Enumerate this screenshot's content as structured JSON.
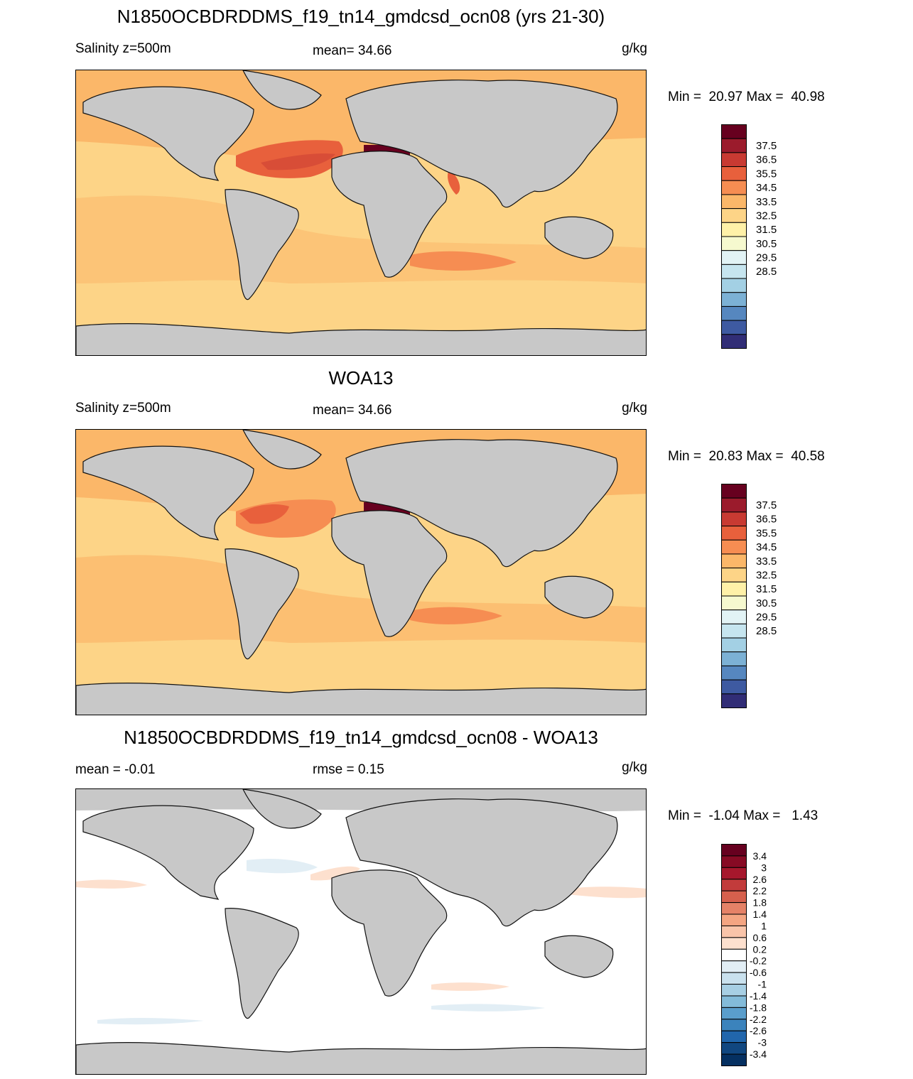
{
  "chart_data": [
    {
      "type": "heatmap",
      "title": "N1850OCBDRDDMS_f19_tn14_gmdcsd_ocn08 (yrs 21-30)",
      "variable_label": "Salinity z=500m",
      "mean_label": "mean=  34.66",
      "units": "g/kg",
      "minmax_label": "Min =  20.97 Max =  40.98",
      "colorbar": {
        "labels": [
          "37.5",
          "36.5",
          "35.5",
          "34.5",
          "33.5",
          "32.5",
          "31.5",
          "30.5",
          "29.5",
          "28.5"
        ],
        "colors": [
          "#67001f",
          "#9b1b2c",
          "#c83a32",
          "#e8603c",
          "#f68d52",
          "#fbb769",
          "#fdd487",
          "#fff1a8",
          "#f6f9cf",
          "#e2f3f5",
          "#c6e5ef",
          "#a3d0e4",
          "#7cb1d5",
          "#5687bf",
          "#3e5aa1",
          "#312d76"
        ]
      }
    },
    {
      "type": "heatmap",
      "title": "WOA13",
      "variable_label": "Salinity z=500m",
      "mean_label": "mean=  34.66",
      "units": "g/kg",
      "minmax_label": "Min =  20.83 Max =  40.58",
      "colorbar": {
        "labels": [
          "37.5",
          "36.5",
          "35.5",
          "34.5",
          "33.5",
          "32.5",
          "31.5",
          "30.5",
          "29.5",
          "28.5"
        ],
        "colors": [
          "#67001f",
          "#9b1b2c",
          "#c83a32",
          "#e8603c",
          "#f68d52",
          "#fbb769",
          "#fdd487",
          "#fff1a8",
          "#f6f9cf",
          "#e2f3f5",
          "#c6e5ef",
          "#a3d0e4",
          "#7cb1d5",
          "#5687bf",
          "#3e5aa1",
          "#312d76"
        ]
      }
    },
    {
      "type": "heatmap",
      "title": "N1850OCBDRDDMS_f19_tn14_gmdcsd_ocn08 - WOA13",
      "mean_label": "mean =  -0.01",
      "rmse_label": "rmse =   0.15",
      "units": "g/kg",
      "minmax_label": "Min =  -1.04 Max =   1.43",
      "colorbar": {
        "labels": [
          "3.4",
          "3",
          "2.6",
          "2.2",
          "1.8",
          "1.4",
          "1",
          "0.6",
          "0.2",
          "-0.2",
          "-0.6",
          "-1",
          "-1.4",
          "-1.8",
          "-2.2",
          "-2.6",
          "-3",
          "-3.4"
        ],
        "colors": [
          "#67001f",
          "#870a24",
          "#a6172c",
          "#c23b3b",
          "#d6604d",
          "#e58267",
          "#f4a582",
          "#f9c4a9",
          "#fde0ce",
          "#ffffff",
          "#e2eef5",
          "#c9e1ee",
          "#a7cfe4",
          "#83bbd9",
          "#5a9ecc",
          "#3b83bc",
          "#2166ac",
          "#114780",
          "#053061"
        ]
      }
    }
  ]
}
